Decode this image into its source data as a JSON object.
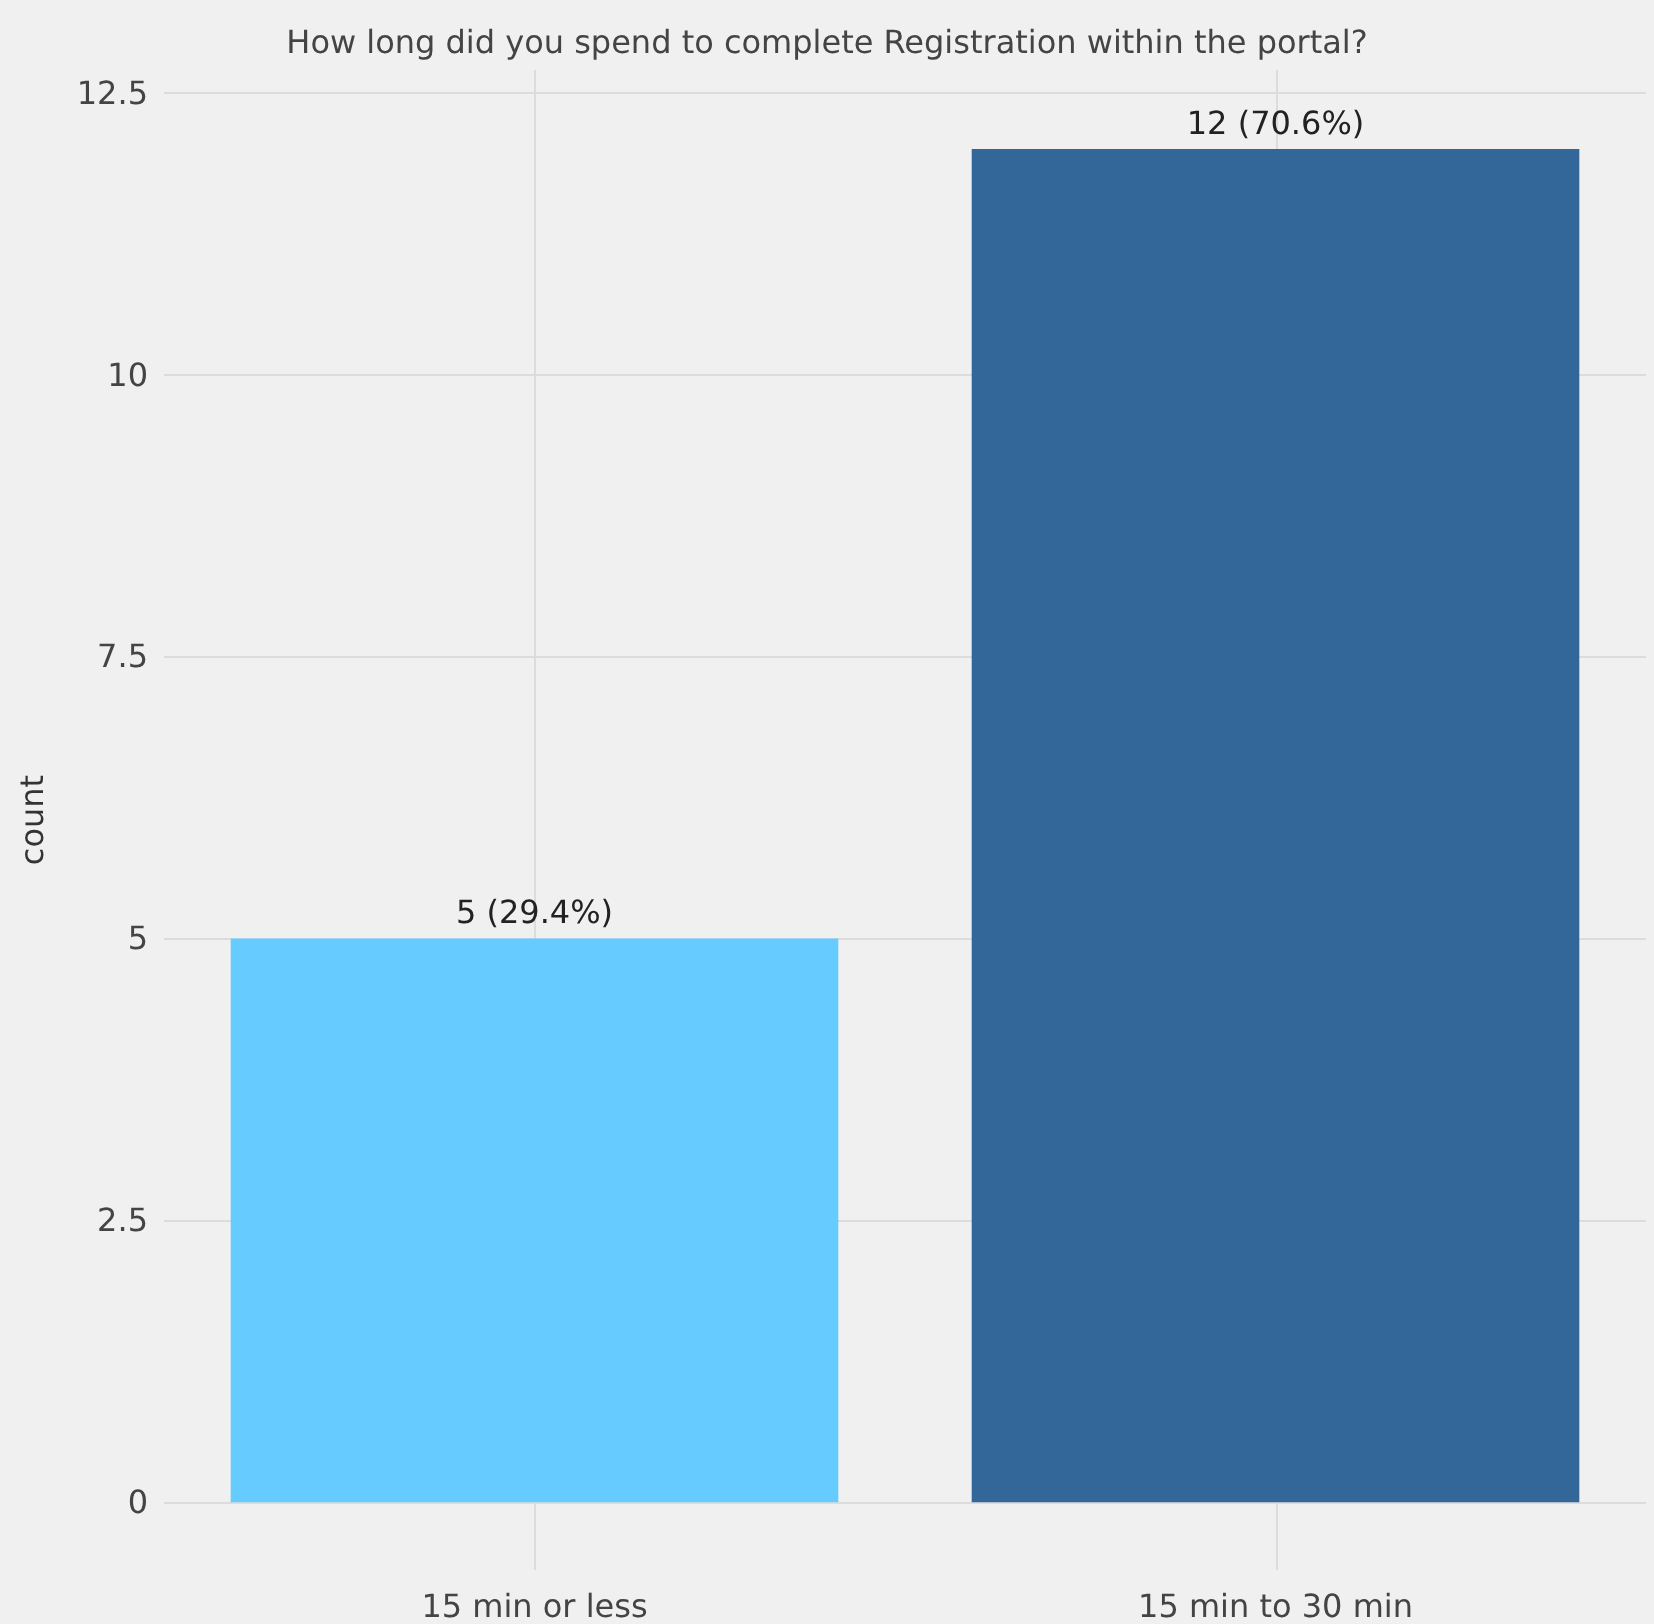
{
  "chart_data": {
    "type": "bar",
    "title": "How long did you spend to complete Registration within the portal?",
    "ylabel": "count",
    "categories": [
      "15 min or less",
      "15 min to 30 min"
    ],
    "values": [
      5,
      12
    ],
    "colors": [
      "#66ccff",
      "#336699"
    ],
    "value_labels": [
      "5 (29.4%)",
      "12 (70.6%)"
    ],
    "ylim": [
      -0.6,
      12.7
    ],
    "yticks": [
      0,
      2.5,
      5,
      7.5,
      10,
      12.5
    ],
    "grid": true
  }
}
